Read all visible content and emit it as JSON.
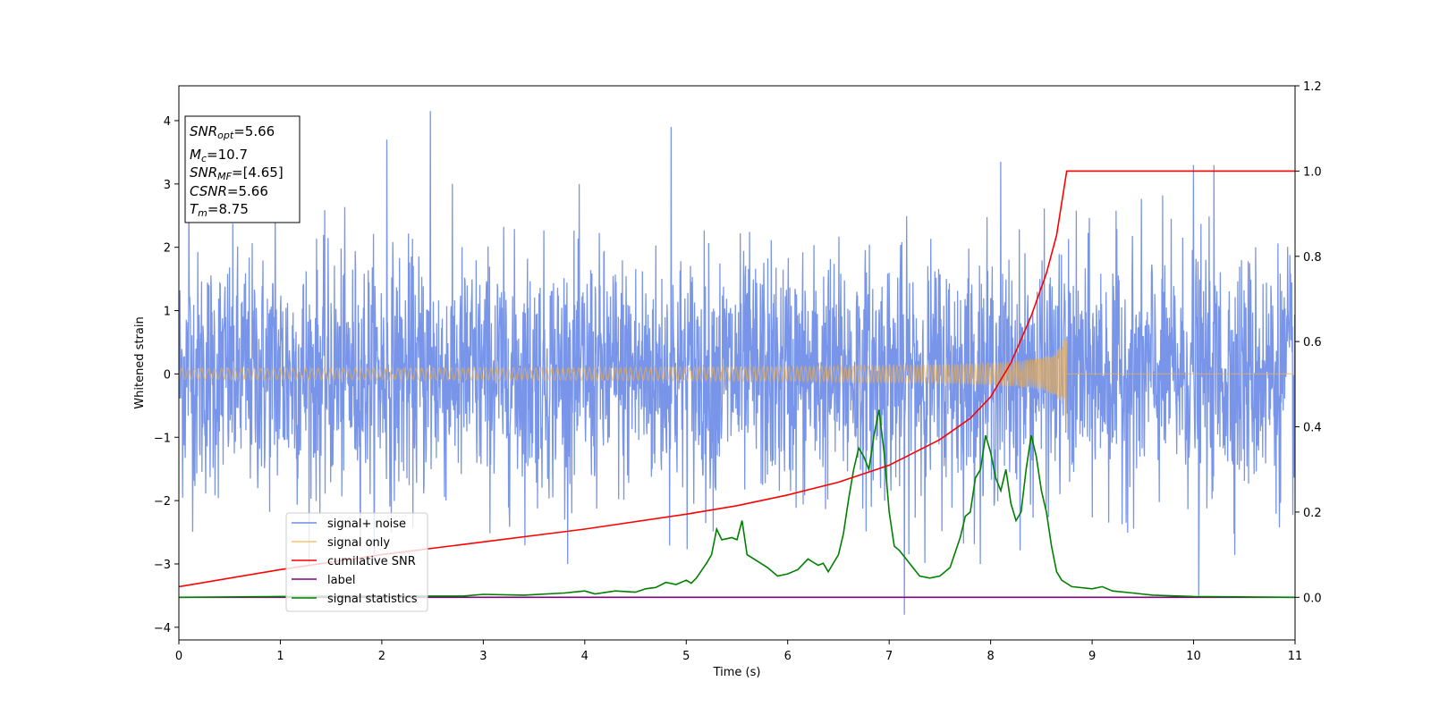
{
  "chart_data": {
    "type": "line",
    "xlabel": "Time (s)",
    "ylabel": "Whitened strain",
    "xlim": [
      0,
      11
    ],
    "ylim_left": [
      -4.2,
      4.55
    ],
    "ylim_right": [
      -0.1,
      1.2
    ],
    "x_ticks": [
      0,
      1,
      2,
      3,
      4,
      5,
      6,
      7,
      8,
      9,
      10,
      11
    ],
    "y_ticks_left": [
      -4,
      -3,
      -2,
      -1,
      0,
      1,
      2,
      3,
      4
    ],
    "y_ticks_right": [
      0.0,
      0.2,
      0.4,
      0.6,
      0.8,
      1.0,
      1.2
    ],
    "grid": false,
    "legend_position": "lower-left",
    "annotation": {
      "snr_opt": {
        "symbol": "SNR",
        "sub": "opt",
        "value": "=5.66"
      },
      "mc": {
        "symbol": "M",
        "sub": "c",
        "value": "=10.7"
      },
      "snr_mf": {
        "symbol": "SNR",
        "sub": "MF",
        "value": "=[4.65]"
      },
      "csnr": {
        "symbol": "CSNR",
        "sub": "",
        "value": "=5.66"
      },
      "tm": {
        "symbol": "T",
        "sub": "m",
        "value": "=8.75"
      }
    },
    "series": [
      {
        "name": "signal+ noise",
        "axis": "left",
        "color": "#6d8ce8",
        "description_values": {
          "std": 0.95,
          "range": [
            -3.8,
            4.15
          ]
        },
        "peaks": [
          [
            0.1,
            2.9
          ],
          [
            0.95,
            2.6
          ],
          [
            2.05,
            3.7
          ],
          [
            2.48,
            4.15
          ],
          [
            4.85,
            3.9
          ],
          [
            8.1,
            3.35
          ],
          [
            10.0,
            3.3
          ],
          [
            10.2,
            3.3
          ],
          [
            7.15,
            -3.8
          ],
          [
            10.05,
            -3.5
          ]
        ]
      },
      {
        "name": "signal only",
        "axis": "left",
        "color": "#f5b041",
        "merge_time": 8.75,
        "peak_amplitude": [
          0.62,
          -0.9
        ]
      },
      {
        "name": "cumilative SNR",
        "axis": "right",
        "color": "#ff0000",
        "x": [
          0,
          1,
          2,
          3,
          4,
          5,
          5.5,
          6,
          6.5,
          7,
          7.5,
          7.8,
          8,
          8.2,
          8.4,
          8.55,
          8.65,
          8.75,
          11
        ],
        "values": [
          0.025,
          0.065,
          0.1,
          0.13,
          0.16,
          0.195,
          0.215,
          0.24,
          0.27,
          0.31,
          0.37,
          0.42,
          0.47,
          0.55,
          0.66,
          0.76,
          0.85,
          1.0,
          1.0
        ]
      },
      {
        "name": "label",
        "axis": "right",
        "color": "#800080",
        "x": [
          0,
          11
        ],
        "values": [
          0,
          0
        ]
      },
      {
        "name": "signal statistics",
        "axis": "right",
        "color": "#008000",
        "x": [
          0,
          1,
          2,
          2.8,
          3,
          3.4,
          3.8,
          4.0,
          4.1,
          4.3,
          4.5,
          4.6,
          4.7,
          4.8,
          4.9,
          5.0,
          5.05,
          5.1,
          5.2,
          5.25,
          5.3,
          5.35,
          5.45,
          5.5,
          5.55,
          5.6,
          5.7,
          5.8,
          5.9,
          6.0,
          6.1,
          6.2,
          6.3,
          6.35,
          6.4,
          6.5,
          6.55,
          6.6,
          6.65,
          6.7,
          6.75,
          6.8,
          6.85,
          6.9,
          6.95,
          7.0,
          7.05,
          7.1,
          7.2,
          7.3,
          7.4,
          7.5,
          7.6,
          7.7,
          7.75,
          7.8,
          7.85,
          7.9,
          7.95,
          8.0,
          8.05,
          8.1,
          8.15,
          8.2,
          8.25,
          8.3,
          8.35,
          8.4,
          8.45,
          8.5,
          8.55,
          8.6,
          8.65,
          8.7,
          8.8,
          9.0,
          9.1,
          9.2,
          9.4,
          9.6,
          10,
          11
        ],
        "values": [
          0,
          0.002,
          0.003,
          0.003,
          0.007,
          0.005,
          0.01,
          0.015,
          0.008,
          0.015,
          0.012,
          0.02,
          0.023,
          0.035,
          0.03,
          0.04,
          0.033,
          0.045,
          0.08,
          0.1,
          0.16,
          0.135,
          0.14,
          0.135,
          0.18,
          0.1,
          0.085,
          0.07,
          0.05,
          0.055,
          0.065,
          0.09,
          0.075,
          0.08,
          0.06,
          0.1,
          0.15,
          0.23,
          0.3,
          0.35,
          0.33,
          0.3,
          0.38,
          0.44,
          0.34,
          0.2,
          0.12,
          0.11,
          0.08,
          0.05,
          0.045,
          0.05,
          0.07,
          0.14,
          0.19,
          0.2,
          0.28,
          0.3,
          0.38,
          0.34,
          0.28,
          0.25,
          0.3,
          0.22,
          0.18,
          0.2,
          0.3,
          0.38,
          0.33,
          0.25,
          0.2,
          0.12,
          0.06,
          0.04,
          0.025,
          0.02,
          0.025,
          0.015,
          0.01,
          0.005,
          0.002,
          0
        ]
      }
    ]
  }
}
